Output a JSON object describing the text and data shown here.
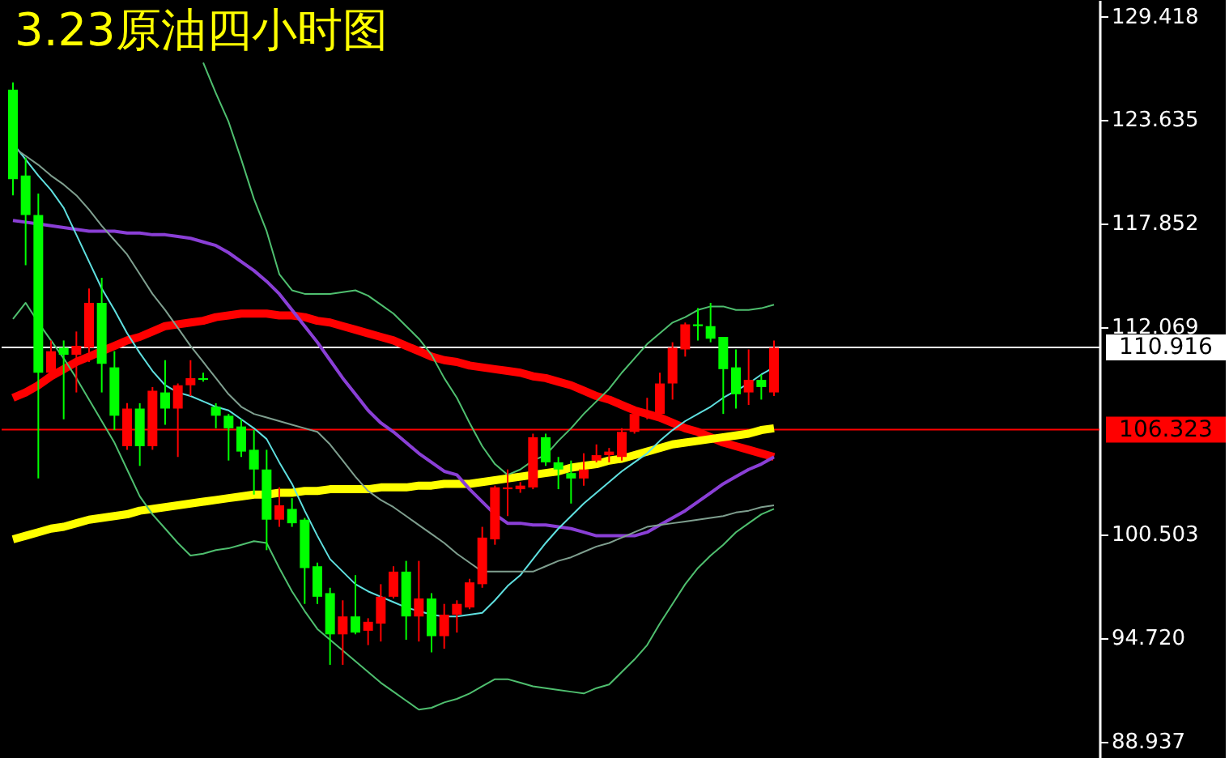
{
  "chart_data": {
    "type": "candlestick",
    "title": "3.23原油四小时图",
    "categories": [
      null,
      null,
      null,
      null,
      null,
      null,
      null,
      null,
      null,
      null,
      null,
      null,
      null,
      null,
      null,
      null,
      null,
      null,
      null,
      null,
      null,
      null,
      null,
      null,
      null,
      null,
      null,
      null,
      null,
      null,
      null,
      null,
      null,
      null,
      null,
      null,
      null,
      null,
      null,
      null,
      null,
      null,
      null,
      null,
      null,
      null,
      null,
      null,
      null,
      null,
      null,
      null,
      null,
      null,
      null,
      null,
      null,
      null,
      null,
      null,
      null
    ],
    "ohlc": [
      [
        125.3,
        125.7,
        119.4,
        120.3
      ],
      [
        120.5,
        121.5,
        115.5,
        118.3
      ],
      [
        118.3,
        119.5,
        103.6,
        109.5
      ],
      [
        109.5,
        111.3,
        109.1,
        110.7
      ],
      [
        110.9,
        111.3,
        106.9,
        110.5
      ],
      [
        110.5,
        111.8,
        108.4,
        111.0
      ],
      [
        110.9,
        114.2,
        110.1,
        113.4
      ],
      [
        113.4,
        114.8,
        108.4,
        110.0
      ],
      [
        109.8,
        110.7,
        106.3,
        107.1
      ],
      [
        105.4,
        107.8,
        105.2,
        107.5
      ],
      [
        107.5,
        107.8,
        104.3,
        105.4
      ],
      [
        105.4,
        108.7,
        105.2,
        108.5
      ],
      [
        108.4,
        110.2,
        106.6,
        107.5
      ],
      [
        107.5,
        108.9,
        104.8,
        108.8
      ],
      [
        108.8,
        110.2,
        108.2,
        109.2
      ],
      [
        109.2,
        109.5,
        109.0,
        109.1
      ],
      [
        107.6,
        107.8,
        106.4,
        107.1
      ],
      [
        107.1,
        107.2,
        104.6,
        106.4
      ],
      [
        106.5,
        106.9,
        104.8,
        105.1
      ],
      [
        105.2,
        106.3,
        102.7,
        104.1
      ],
      [
        104.1,
        105.2,
        99.6,
        101.3
      ],
      [
        101.3,
        103.1,
        100.9,
        102.1
      ],
      [
        101.9,
        102.5,
        100.9,
        101.1
      ],
      [
        101.3,
        101.4,
        96.6,
        98.6
      ],
      [
        98.7,
        98.9,
        96.6,
        97.0
      ],
      [
        97.2,
        97.5,
        93.2,
        94.9
      ],
      [
        94.9,
        96.8,
        93.2,
        95.9
      ],
      [
        95.9,
        98.2,
        94.9,
        95.0
      ],
      [
        95.1,
        95.8,
        94.3,
        95.6
      ],
      [
        95.5,
        97.7,
        94.5,
        97.0
      ],
      [
        97.0,
        98.7,
        96.9,
        98.4
      ],
      [
        98.4,
        99.0,
        94.6,
        95.9
      ],
      [
        95.9,
        99.0,
        94.5,
        96.9
      ],
      [
        96.9,
        97.2,
        93.9,
        94.8
      ],
      [
        94.8,
        96.6,
        94.1,
        96.0
      ],
      [
        96.0,
        96.8,
        95.0,
        96.6
      ],
      [
        96.4,
        98.0,
        96.3,
        97.8
      ],
      [
        97.7,
        100.9,
        97.5,
        100.3
      ],
      [
        100.2,
        103.2,
        99.9,
        103.1
      ],
      [
        103.0,
        104.1,
        101.5,
        103.1
      ],
      [
        103.0,
        103.4,
        102.8,
        103.2
      ],
      [
        103.1,
        106.1,
        103.0,
        105.9
      ],
      [
        105.9,
        106.1,
        104.3,
        104.5
      ],
      [
        104.5,
        104.8,
        103.0,
        104.1
      ],
      [
        103.9,
        104.6,
        102.2,
        103.6
      ],
      [
        103.6,
        105.0,
        103.2,
        104.1
      ],
      [
        104.6,
        105.5,
        104.5,
        104.9
      ],
      [
        104.9,
        105.3,
        104.5,
        105.1
      ],
      [
        104.8,
        106.4,
        104.6,
        106.2
      ],
      [
        106.2,
        107.3,
        106.1,
        107.2
      ],
      [
        107.1,
        108.1,
        106.9,
        107.3
      ],
      [
        107.2,
        109.5,
        107.1,
        108.9
      ],
      [
        108.9,
        111.2,
        108.0,
        110.9
      ],
      [
        110.8,
        112.3,
        110.4,
        112.2
      ],
      [
        112.2,
        113.1,
        111.3,
        112.1
      ],
      [
        112.1,
        113.4,
        111.2,
        111.4
      ],
      [
        111.5,
        111.5,
        107.2,
        109.7
      ],
      [
        109.8,
        110.8,
        107.5,
        108.3
      ],
      [
        108.4,
        110.8,
        107.7,
        109.1
      ],
      [
        109.1,
        109.4,
        108.0,
        108.7
      ],
      [
        108.4,
        111.3,
        108.2,
        110.9
      ]
    ],
    "colors": [
      "#00ff00",
      "#00ff00",
      "#00ff00",
      "#ff0000",
      "#00ff00",
      "#ff0000",
      "#ff0000",
      "#00ff00",
      "#00ff00",
      "#ff0000",
      "#00ff00",
      "#ff0000",
      "#00ff00",
      "#ff0000",
      "#ff0000",
      "#00ff00",
      "#00ff00",
      "#00ff00",
      "#00ff00",
      "#00ff00",
      "#00ff00",
      "#ff0000",
      "#00ff00",
      "#00ff00",
      "#00ff00",
      "#00ff00",
      "#ff0000",
      "#00ff00",
      "#ff0000",
      "#ff0000",
      "#ff0000",
      "#00ff00",
      "#ff0000",
      "#00ff00",
      "#ff0000",
      "#ff0000",
      "#ff0000",
      "#ff0000",
      "#ff0000",
      "#ff0000",
      "#ff0000",
      "#ff0000",
      "#00ff00",
      "#00ff00",
      "#00ff00",
      "#ff0000",
      "#ff0000",
      "#ff0000",
      "#ff0000",
      "#ff0000",
      "#ff0000",
      "#ff0000",
      "#ff0000",
      "#ff0000",
      "#00ff00",
      "#00ff00",
      "#00ff00",
      "#00ff00",
      "#ff0000",
      "#00ff00",
      "#ff0000"
    ],
    "series": [
      {
        "type": "line",
        "color": "#ff0000",
        "values": [
          108.1,
          108.4,
          108.8,
          109.3,
          109.7,
          110.1,
          110.4,
          110.7,
          111.0,
          111.3,
          111.5,
          111.8,
          112.1,
          112.2,
          112.3,
          112.4,
          112.6,
          112.7,
          112.8,
          112.8,
          112.8,
          112.7,
          112.7,
          112.6,
          112.4,
          112.3,
          112.1,
          111.9,
          111.7,
          111.5,
          111.3,
          111.0,
          110.7,
          110.4,
          110.2,
          110.1,
          109.9,
          109.8,
          109.7,
          109.6,
          109.5,
          109.3,
          109.2,
          109.0,
          108.8,
          108.5,
          108.2,
          108.0,
          107.7,
          107.4,
          107.2,
          107.0,
          106.7,
          106.4,
          106.2,
          105.9,
          105.6,
          105.4,
          105.2,
          105.0,
          104.8
        ]
      },
      {
        "type": "line",
        "color": "#ffff00",
        "values": [
          100.2,
          100.4,
          100.6,
          100.8,
          100.9,
          101.1,
          101.3,
          101.4,
          101.5,
          101.6,
          101.8,
          101.9,
          102.0,
          102.1,
          102.2,
          102.3,
          102.4,
          102.5,
          102.6,
          102.7,
          102.7,
          102.8,
          102.8,
          102.9,
          102.9,
          103.0,
          103.0,
          103.0,
          103.0,
          103.1,
          103.1,
          103.1,
          103.2,
          103.2,
          103.3,
          103.3,
          103.3,
          103.4,
          103.5,
          103.6,
          103.7,
          103.8,
          103.9,
          104.0,
          104.2,
          104.3,
          104.4,
          104.6,
          104.7,
          104.9,
          105.1,
          105.3,
          105.5,
          105.6,
          105.7,
          105.8,
          105.9,
          106.0,
          106.1,
          106.3,
          106.4
        ]
      },
      {
        "type": "line",
        "color": "#8a3fd6",
        "values": [
          118.0,
          117.9,
          117.8,
          117.7,
          117.6,
          117.5,
          117.4,
          117.4,
          117.4,
          117.3,
          117.3,
          117.2,
          117.2,
          117.1,
          117.0,
          116.8,
          116.6,
          116.2,
          115.7,
          115.2,
          114.6,
          113.9,
          113.0,
          112.1,
          111.2,
          110.2,
          109.2,
          108.3,
          107.4,
          106.7,
          106.2,
          105.6,
          105.0,
          104.5,
          104.0,
          103.8,
          103.0,
          102.3,
          101.6,
          101.1,
          101.1,
          101.0,
          101.0,
          100.9,
          100.8,
          100.6,
          100.4,
          100.4,
          100.4,
          100.4,
          100.6,
          101.0,
          101.4,
          101.8,
          102.3,
          102.8,
          103.3,
          103.7,
          104.1,
          104.4,
          104.8
        ]
      },
      {
        "type": "line",
        "color": "#5fe0e0",
        "values": [
          122.3,
          121.4,
          120.5,
          119.7,
          118.7,
          117.2,
          115.7,
          114.2,
          113.0,
          111.7,
          110.6,
          109.6,
          108.8,
          108.4,
          108.2,
          107.9,
          107.6,
          107.4,
          106.9,
          106.4,
          105.8,
          104.5,
          103.3,
          101.8,
          100.4,
          99.1,
          98.4,
          97.7,
          97.3,
          97.0,
          96.7,
          96.4,
          96.2,
          96.0,
          95.9,
          95.9,
          96.0,
          96.1,
          96.8,
          97.6,
          98.2,
          99.1,
          100.0,
          100.8,
          101.5,
          102.2,
          102.8,
          103.4,
          104.0,
          104.5,
          105.0,
          105.7,
          106.3,
          106.8,
          107.2,
          107.6,
          108.1,
          108.5,
          108.9,
          109.4,
          109.8
        ]
      },
      {
        "type": "line",
        "color": "#4fbf6f",
        "values": [
          null,
          null,
          null,
          null,
          null,
          null,
          null,
          null,
          null,
          null,
          null,
          null,
          null,
          null,
          null,
          126.8,
          125.1,
          123.5,
          121.4,
          119.2,
          117.4,
          115.0,
          114.1,
          113.9,
          113.9,
          113.9,
          114.0,
          114.1,
          113.8,
          113.3,
          112.8,
          112.1,
          111.4,
          110.5,
          109.2,
          108.1,
          106.7,
          105.4,
          104.4,
          103.8,
          104.1,
          104.6,
          104.9,
          105.7,
          106.4,
          107.2,
          107.9,
          108.6,
          109.5,
          110.3,
          111.1,
          111.7,
          112.3,
          112.6,
          113.0,
          113.2,
          113.2,
          113.0,
          113.0,
          113.1,
          113.3
        ]
      },
      {
        "type": "line",
        "color": "#7f9f8f",
        "values": [
          122.1,
          121.6,
          121.1,
          120.5,
          120.0,
          119.4,
          118.6,
          117.7,
          116.9,
          116.1,
          115.0,
          113.9,
          113.0,
          112.0,
          111.0,
          110.1,
          109.2,
          108.3,
          107.6,
          107.2,
          107.0,
          106.8,
          106.6,
          106.4,
          106.2,
          105.5,
          104.6,
          103.7,
          102.9,
          102.4,
          102.0,
          101.5,
          101.0,
          100.5,
          100.0,
          99.4,
          98.9,
          98.4,
          98.4,
          98.4,
          98.4,
          98.4,
          98.7,
          99.0,
          99.2,
          99.5,
          99.8,
          100.0,
          100.3,
          100.6,
          100.9,
          101.0,
          101.1,
          101.2,
          101.3,
          101.4,
          101.5,
          101.7,
          101.8,
          102.0,
          102.1
        ]
      },
      {
        "type": "line",
        "color": "#4fbf6f",
        "values": [
          112.5,
          113.4,
          112.3,
          111.3,
          110.3,
          109.2,
          108.0,
          106.8,
          105.6,
          104.1,
          102.6,
          101.6,
          100.8,
          100.0,
          99.3,
          99.4,
          99.6,
          99.7,
          99.9,
          100.1,
          100.0,
          98.6,
          97.3,
          96.2,
          95.2,
          94.6,
          94.0,
          93.4,
          92.8,
          92.2,
          91.7,
          91.2,
          90.7,
          90.8,
          91.1,
          91.3,
          91.6,
          92.0,
          92.4,
          92.4,
          92.2,
          92.0,
          91.9,
          91.8,
          91.7,
          91.6,
          91.9,
          92.1,
          92.8,
          93.5,
          94.3,
          95.5,
          96.6,
          97.7,
          98.6,
          99.3,
          99.9,
          100.6,
          101.1,
          101.6,
          101.9
        ]
      }
    ],
    "ref_lines": [
      {
        "axis": "y",
        "value": 110.916,
        "label": "110.916",
        "color": "#ffffff"
      },
      {
        "axis": "y",
        "value": 106.323,
        "label": "106.323",
        "color": "#ff0000"
      }
    ],
    "ylim": [
      88.0,
      130.3
    ],
    "yticks": [
      {
        "value": 88.937,
        "label": "88.937"
      },
      {
        "value": 94.72,
        "label": "94.720"
      },
      {
        "value": 100.503,
        "label": "100.503"
      },
      {
        "value": 112.069,
        "label": "112.069"
      },
      {
        "value": 117.852,
        "label": "117.852"
      },
      {
        "value": 123.635,
        "label": "123.635"
      },
      {
        "value": 129.418,
        "label": "129.418"
      }
    ],
    "grid": false,
    "tick_labels": "y"
  }
}
